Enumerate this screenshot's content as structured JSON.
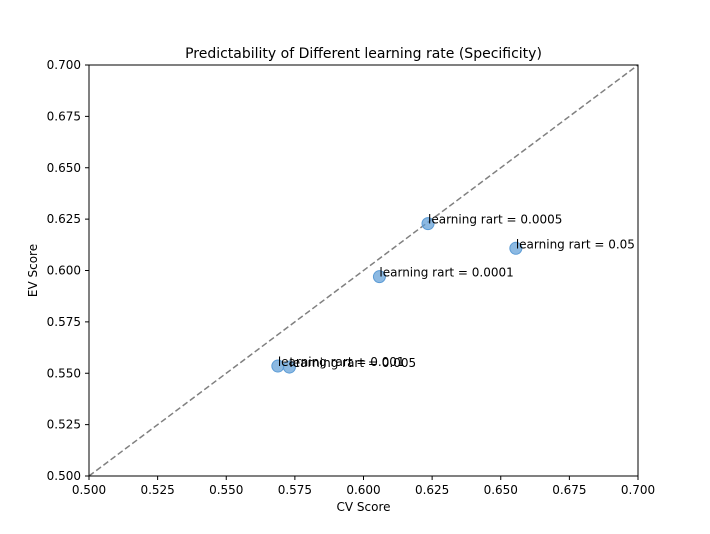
{
  "chart_data": {
    "type": "scatter",
    "title": "Predictability of Different learning rate (Specificity)",
    "xlabel": "CV Score",
    "ylabel": "EV Score",
    "xlim": [
      0.5,
      0.7
    ],
    "ylim": [
      0.5,
      0.7
    ],
    "xticks": [
      "0.500",
      "0.525",
      "0.550",
      "0.575",
      "0.600",
      "0.625",
      "0.650",
      "0.675",
      "0.700"
    ],
    "yticks": [
      "0.500",
      "0.525",
      "0.550",
      "0.575",
      "0.600",
      "0.625",
      "0.650",
      "0.675",
      "0.700"
    ],
    "grid": false,
    "reference_line": {
      "style": "dashed",
      "from": [
        0.5,
        0.5
      ],
      "to": [
        0.7,
        0.7
      ],
      "color": "#808080"
    },
    "marker_color": "#5b9bd5",
    "points": [
      {
        "label": "learning rart = 0.0005",
        "x": 0.6235,
        "y": 0.6228
      },
      {
        "label": "learning rart = 0.05",
        "x": 0.6555,
        "y": 0.6108
      },
      {
        "label": "learning rart = 0.0001",
        "x": 0.6058,
        "y": 0.597
      },
      {
        "label": "learning rart = 0.001",
        "x": 0.5688,
        "y": 0.5535
      },
      {
        "label": "learning rart = 0.005",
        "x": 0.573,
        "y": 0.553
      }
    ]
  }
}
